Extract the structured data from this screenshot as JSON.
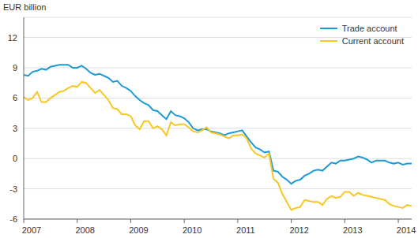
{
  "chart_data": {
    "type": "line",
    "ylabel": "EUR billion",
    "categories": [
      "2007",
      null,
      null,
      null,
      null,
      null,
      null,
      null,
      null,
      null,
      null,
      null,
      "2008",
      null,
      null,
      null,
      null,
      null,
      null,
      null,
      null,
      null,
      null,
      null,
      "2009",
      null,
      null,
      null,
      null,
      null,
      null,
      null,
      null,
      null,
      null,
      null,
      "2010",
      null,
      null,
      null,
      null,
      null,
      null,
      null,
      null,
      null,
      null,
      null,
      "2011",
      null,
      null,
      null,
      null,
      null,
      null,
      null,
      null,
      null,
      null,
      null,
      "2012",
      null,
      null,
      null,
      null,
      null,
      null,
      null,
      null,
      null,
      null,
      null,
      "2013",
      null,
      null,
      null,
      null,
      null,
      null,
      null,
      null,
      null,
      null,
      null,
      "2014",
      null,
      null,
      null
    ],
    "series": [
      {
        "name": "Trade account",
        "color": "#1a9bd7",
        "values": [
          8.3,
          8.2,
          8.6,
          8.7,
          8.9,
          8.8,
          9.1,
          9.2,
          9.3,
          9.3,
          9.3,
          9.0,
          9.0,
          9.2,
          8.9,
          8.5,
          8.3,
          8.4,
          8.2,
          8.0,
          7.6,
          7.7,
          7.2,
          7.0,
          6.7,
          6.2,
          5.8,
          5.5,
          5.3,
          4.8,
          4.7,
          4.3,
          3.9,
          4.7,
          4.3,
          4.2,
          4.0,
          3.6,
          3.0,
          2.8,
          2.9,
          2.9,
          2.7,
          2.6,
          2.5,
          2.3,
          2.5,
          2.6,
          2.7,
          2.8,
          2.2,
          1.6,
          1.1,
          0.9,
          0.6,
          0.7,
          -1.2,
          -1.3,
          -1.8,
          -2.1,
          -2.5,
          -2.2,
          -2.1,
          -1.7,
          -1.5,
          -1.2,
          -1.1,
          -1.2,
          -0.8,
          -0.4,
          -0.5,
          -0.2,
          -0.2,
          -0.1,
          0.0,
          0.2,
          0.1,
          -0.1,
          -0.4,
          -0.2,
          -0.2,
          -0.2,
          -0.4,
          -0.5,
          -0.4,
          -0.6,
          -0.5,
          -0.5
        ]
      },
      {
        "name": "Current account",
        "color": "#f9c623",
        "values": [
          6.1,
          5.8,
          6.0,
          6.6,
          5.6,
          5.6,
          6.0,
          6.3,
          6.6,
          6.7,
          7.0,
          7.2,
          7.1,
          7.6,
          7.5,
          7.0,
          6.5,
          6.8,
          6.3,
          5.8,
          5.0,
          4.9,
          4.4,
          4.4,
          4.2,
          3.3,
          2.9,
          3.7,
          3.7,
          3.0,
          3.2,
          2.9,
          2.3,
          3.6,
          3.3,
          3.4,
          3.4,
          3.1,
          2.7,
          2.6,
          2.8,
          3.1,
          2.6,
          2.5,
          2.4,
          2.2,
          2.0,
          2.3,
          2.3,
          2.4,
          2.0,
          1.0,
          0.5,
          0.3,
          0.1,
          0.5,
          -2.0,
          -2.4,
          -3.5,
          -4.3,
          -5.1,
          -4.9,
          -4.8,
          -4.1,
          -4.2,
          -4.3,
          -4.3,
          -4.6,
          -4.0,
          -3.7,
          -3.9,
          -3.8,
          -3.3,
          -3.3,
          -3.7,
          -3.4,
          -3.6,
          -3.7,
          -3.8,
          -3.9,
          -4.0,
          -4.1,
          -4.5,
          -4.7,
          -4.8,
          -4.9,
          -4.6,
          -4.7
        ]
      }
    ],
    "ylim": [
      -6,
      14
    ],
    "yticks": [
      -6,
      -3,
      0,
      3,
      6,
      9,
      12
    ],
    "grid": true,
    "legend": "upper right"
  }
}
